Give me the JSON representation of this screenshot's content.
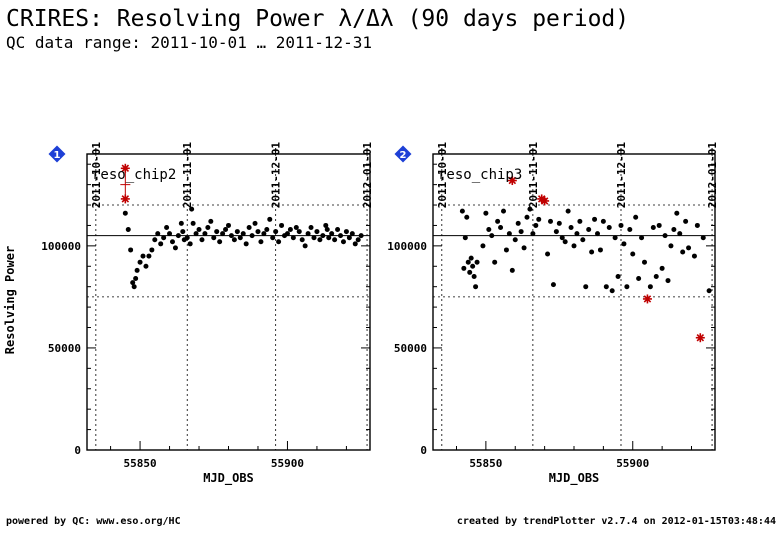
{
  "header": {
    "title": "CRIRES: Resolving Power λ/Δλ (90 days period)",
    "subtitle": "QC data range: 2011-10-01 … 2011-12-31"
  },
  "footer": {
    "left": "powered by QC: www.eso.org/HC",
    "right": "created by trendPlotter v2.7.4 on 2012-01-15T03:48:44"
  },
  "shared": {
    "ylabel": "Resolving Power",
    "xlabel": "MJD_OBS",
    "xlim": [
      55832,
      55928
    ],
    "ylim": [
      0,
      145000
    ],
    "x_ticks": [
      55850,
      55900
    ],
    "y_ticks": [
      0,
      50000,
      100000
    ],
    "date_ticks": [
      {
        "label": "2011-10-01",
        "mjd": 55835
      },
      {
        "label": "2011-11-01",
        "mjd": 55866
      },
      {
        "label": "2011-12-01",
        "mjd": 55896
      },
      {
        "label": "2012-01-01",
        "mjd": 55927
      }
    ],
    "colors": {
      "points": "#000000",
      "outliers": "#c00000",
      "badge": "#1d3fd6"
    }
  },
  "chart_data": [
    {
      "type": "scatter",
      "panel_number": "1",
      "name": "reso_chip2",
      "reference": 105000,
      "limits": [
        75000,
        120000
      ],
      "outliers": [
        [
          55845,
          138000
        ],
        [
          55845,
          123000
        ]
      ],
      "points": [
        [
          55845,
          116000
        ],
        [
          55846,
          108000
        ],
        [
          55846.8,
          98000
        ],
        [
          55847.5,
          82000
        ],
        [
          55848,
          80000
        ],
        [
          55848.5,
          84000
        ],
        [
          55849,
          88000
        ],
        [
          55850,
          92000
        ],
        [
          55851,
          95000
        ],
        [
          55852,
          90000
        ],
        [
          55853,
          95000
        ],
        [
          55854,
          98000
        ],
        [
          55855,
          103000
        ],
        [
          55856,
          106000
        ],
        [
          55857,
          101000
        ],
        [
          55858,
          104000
        ],
        [
          55859,
          109000
        ],
        [
          55860,
          106000
        ],
        [
          55861,
          102000
        ],
        [
          55862,
          99000
        ],
        [
          55863,
          105000
        ],
        [
          55864,
          111000
        ],
        [
          55864.5,
          107000
        ],
        [
          55865,
          103000
        ],
        [
          55866,
          104000
        ],
        [
          55867,
          101000
        ],
        [
          55867.5,
          118000
        ],
        [
          55868,
          111000
        ],
        [
          55869,
          106000
        ],
        [
          55870,
          108000
        ],
        [
          55871,
          103000
        ],
        [
          55872,
          106000
        ],
        [
          55873,
          109000
        ],
        [
          55874,
          112000
        ],
        [
          55875,
          104000
        ],
        [
          55876,
          107000
        ],
        [
          55877,
          102000
        ],
        [
          55878,
          106000
        ],
        [
          55879,
          108000
        ],
        [
          55880,
          110000
        ],
        [
          55881,
          105000
        ],
        [
          55882,
          103000
        ],
        [
          55883,
          107000
        ],
        [
          55884,
          104000
        ],
        [
          55885,
          106000
        ],
        [
          55886,
          101000
        ],
        [
          55887,
          109000
        ],
        [
          55888,
          105000
        ],
        [
          55889,
          111000
        ],
        [
          55890,
          107000
        ],
        [
          55891,
          102000
        ],
        [
          55892,
          106000
        ],
        [
          55893,
          108000
        ],
        [
          55894,
          113000
        ],
        [
          55895,
          104000
        ],
        [
          55896,
          107000
        ],
        [
          55897,
          102000
        ],
        [
          55898,
          110000
        ],
        [
          55899,
          105000
        ],
        [
          55900,
          106000
        ],
        [
          55901,
          108000
        ],
        [
          55902,
          104000
        ],
        [
          55903,
          109000
        ],
        [
          55904,
          107000
        ],
        [
          55905,
          103000
        ],
        [
          55906,
          100000
        ],
        [
          55907,
          106000
        ],
        [
          55908,
          109000
        ],
        [
          55909,
          104000
        ],
        [
          55910,
          107000
        ],
        [
          55911,
          103000
        ],
        [
          55912,
          105000
        ],
        [
          55913,
          110000
        ],
        [
          55913.5,
          108000
        ],
        [
          55914,
          104000
        ],
        [
          55915,
          106000
        ],
        [
          55916,
          103000
        ],
        [
          55917,
          108000
        ],
        [
          55918,
          105000
        ],
        [
          55919,
          102000
        ],
        [
          55920,
          107000
        ],
        [
          55921,
          104000
        ],
        [
          55922,
          106000
        ],
        [
          55923,
          101000
        ],
        [
          55924,
          103000
        ],
        [
          55925,
          105000
        ]
      ]
    },
    {
      "type": "scatter",
      "panel_number": "2",
      "name": "reso_chip3",
      "reference": 105000,
      "limits": [
        75000,
        120000
      ],
      "outliers": [
        [
          55859,
          132000
        ],
        [
          55869,
          123000
        ],
        [
          55870,
          122000
        ],
        [
          55905,
          74000
        ],
        [
          55923,
          55000
        ]
      ],
      "points": [
        [
          55842,
          117000
        ],
        [
          55842.5,
          89000
        ],
        [
          55843,
          104000
        ],
        [
          55843.5,
          114000
        ],
        [
          55844,
          92000
        ],
        [
          55844.5,
          87000
        ],
        [
          55845,
          94000
        ],
        [
          55845.5,
          90000
        ],
        [
          55846,
          85000
        ],
        [
          55846.5,
          80000
        ],
        [
          55847,
          92000
        ],
        [
          55849,
          100000
        ],
        [
          55850,
          116000
        ],
        [
          55851,
          108000
        ],
        [
          55852,
          105000
        ],
        [
          55853,
          92000
        ],
        [
          55854,
          112000
        ],
        [
          55855,
          109000
        ],
        [
          55856,
          117000
        ],
        [
          55857,
          98000
        ],
        [
          55858,
          106000
        ],
        [
          55859,
          88000
        ],
        [
          55860,
          103000
        ],
        [
          55861,
          111000
        ],
        [
          55862,
          107000
        ],
        [
          55863,
          99000
        ],
        [
          55864,
          114000
        ],
        [
          55865,
          118000
        ],
        [
          55866,
          106000
        ],
        [
          55867,
          110000
        ],
        [
          55868,
          113000
        ],
        [
          55871,
          96000
        ],
        [
          55872,
          112000
        ],
        [
          55873,
          81000
        ],
        [
          55874,
          107000
        ],
        [
          55875,
          111000
        ],
        [
          55876,
          104000
        ],
        [
          55877,
          102000
        ],
        [
          55878,
          117000
        ],
        [
          55879,
          109000
        ],
        [
          55880,
          100000
        ],
        [
          55881,
          106000
        ],
        [
          55882,
          112000
        ],
        [
          55883,
          103000
        ],
        [
          55884,
          80000
        ],
        [
          55885,
          108000
        ],
        [
          55886,
          97000
        ],
        [
          55887,
          113000
        ],
        [
          55888,
          106000
        ],
        [
          55889,
          98000
        ],
        [
          55890,
          112000
        ],
        [
          55891,
          80000
        ],
        [
          55892,
          109000
        ],
        [
          55893,
          78000
        ],
        [
          55894,
          104000
        ],
        [
          55895,
          85000
        ],
        [
          55896,
          110000
        ],
        [
          55897,
          101000
        ],
        [
          55898,
          80000
        ],
        [
          55899,
          108000
        ],
        [
          55900,
          96000
        ],
        [
          55901,
          114000
        ],
        [
          55902,
          84000
        ],
        [
          55903,
          104000
        ],
        [
          55904,
          92000
        ],
        [
          55906,
          80000
        ],
        [
          55907,
          109000
        ],
        [
          55908,
          85000
        ],
        [
          55909,
          110000
        ],
        [
          55910,
          89000
        ],
        [
          55911,
          105000
        ],
        [
          55912,
          83000
        ],
        [
          55913,
          100000
        ],
        [
          55914,
          108000
        ],
        [
          55915,
          116000
        ],
        [
          55916,
          106000
        ],
        [
          55917,
          97000
        ],
        [
          55918,
          112000
        ],
        [
          55919,
          99000
        ],
        [
          55921,
          95000
        ],
        [
          55922,
          110000
        ],
        [
          55924,
          104000
        ],
        [
          55926,
          78000
        ]
      ]
    }
  ]
}
